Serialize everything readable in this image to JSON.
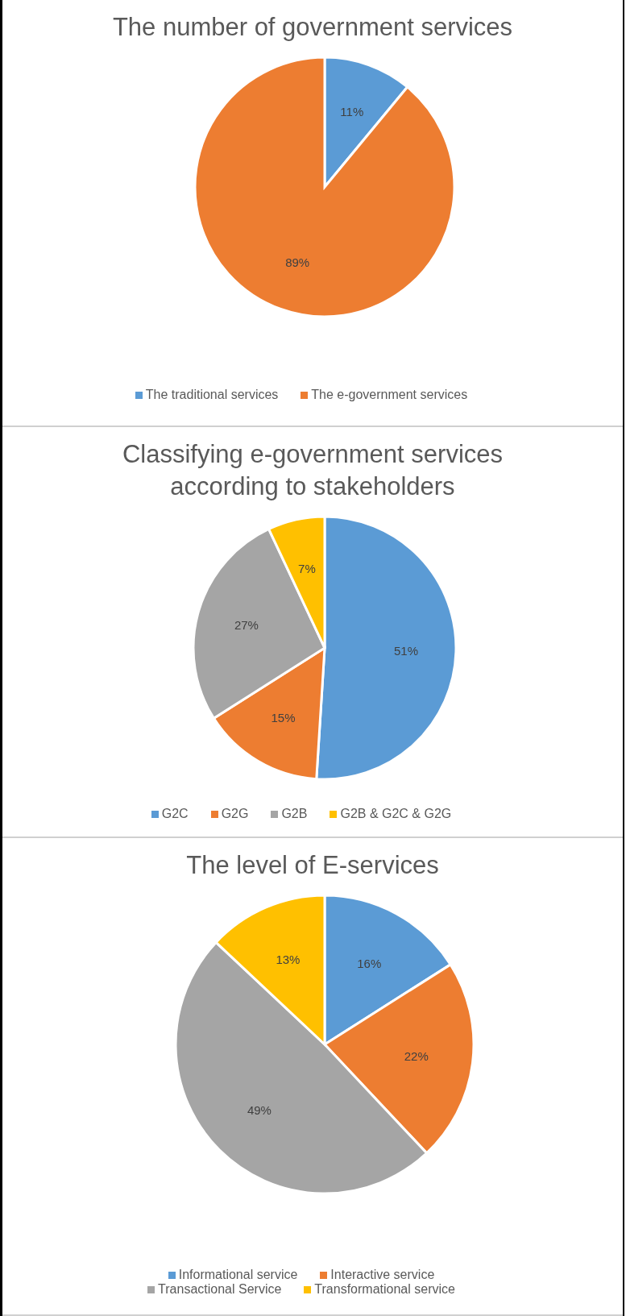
{
  "chart_data": [
    {
      "type": "pie",
      "title": "The number of government services",
      "categories": [
        "The traditional services",
        "The e-government services"
      ],
      "values": [
        11,
        89
      ],
      "value_labels": [
        "11%",
        "89%"
      ],
      "colors": [
        "#5b9bd5",
        "#ed7d31"
      ],
      "legend": "bottom"
    },
    {
      "type": "pie",
      "title": "Classifying e-government services according to stakeholders",
      "categories": [
        "G2C",
        "G2G",
        "G2B",
        "G2B & G2C & G2G"
      ],
      "values": [
        51,
        15,
        27,
        7
      ],
      "value_labels": [
        "51%",
        "15%",
        "27%",
        "7%"
      ],
      "colors": [
        "#5b9bd5",
        "#ed7d31",
        "#a5a5a5",
        "#ffc000"
      ],
      "legend": "bottom"
    },
    {
      "type": "pie",
      "title": "The level of E-services",
      "categories": [
        "Informational service",
        "Interactive service",
        "Transactional Service",
        "Transformational service"
      ],
      "values": [
        16,
        22,
        49,
        13
      ],
      "value_labels": [
        "16%",
        "22%",
        "49%",
        "13%"
      ],
      "colors": [
        "#5b9bd5",
        "#ed7d31",
        "#a5a5a5",
        "#ffc000"
      ],
      "legend": "bottom"
    }
  ]
}
